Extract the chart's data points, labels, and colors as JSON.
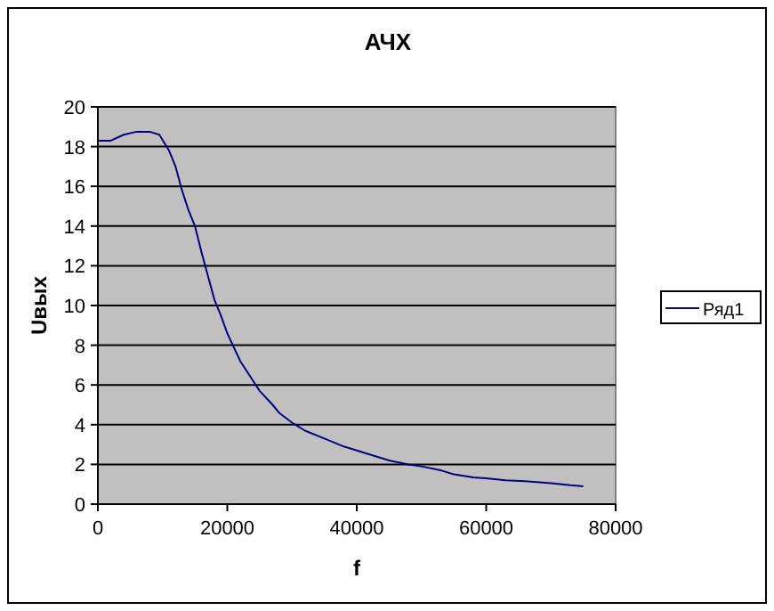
{
  "chart_data": {
    "type": "line",
    "title": "АЧХ",
    "xlabel": "f",
    "ylabel": "Uвых",
    "xlim": [
      0,
      80000
    ],
    "xticks": [
      0,
      20000,
      40000,
      60000,
      80000
    ],
    "ylim": [
      0,
      20
    ],
    "yticks": [
      0,
      2,
      4,
      6,
      8,
      10,
      12,
      14,
      16,
      18,
      20
    ],
    "grid": "y",
    "legend": "right",
    "series": [
      {
        "name": "Ряд1",
        "color": "#000080",
        "x": [
          0,
          2000,
          4000,
          6000,
          8000,
          9500,
          11000,
          12000,
          13000,
          14000,
          15000,
          16000,
          17000,
          18000,
          19000,
          20000,
          22000,
          24000,
          25000,
          27000,
          28000,
          30000,
          32000,
          35000,
          38000,
          40000,
          42000,
          45000,
          48000,
          50000,
          53000,
          55000,
          58000,
          60000,
          63000,
          66000,
          70000,
          73000,
          75000
        ],
        "values": [
          18.3,
          18.3,
          18.6,
          18.75,
          18.75,
          18.6,
          17.8,
          17.0,
          15.8,
          14.8,
          14.0,
          12.7,
          11.5,
          10.3,
          9.5,
          8.6,
          7.2,
          6.2,
          5.7,
          5.0,
          4.6,
          4.1,
          3.7,
          3.3,
          2.9,
          2.7,
          2.5,
          2.2,
          2.0,
          1.9,
          1.7,
          1.5,
          1.35,
          1.3,
          1.2,
          1.15,
          1.05,
          0.95,
          0.9
        ]
      }
    ]
  }
}
